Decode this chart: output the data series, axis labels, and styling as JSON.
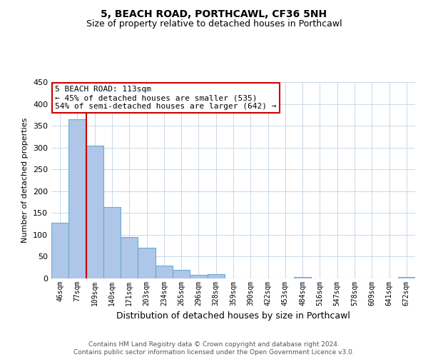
{
  "title": "5, BEACH ROAD, PORTHCAWL, CF36 5NH",
  "subtitle": "Size of property relative to detached houses in Porthcawl",
  "xlabel": "Distribution of detached houses by size in Porthcawl",
  "ylabel": "Number of detached properties",
  "bin_labels": [
    "46sqm",
    "77sqm",
    "109sqm",
    "140sqm",
    "171sqm",
    "203sqm",
    "234sqm",
    "265sqm",
    "296sqm",
    "328sqm",
    "359sqm",
    "390sqm",
    "422sqm",
    "453sqm",
    "484sqm",
    "516sqm",
    "547sqm",
    "578sqm",
    "609sqm",
    "641sqm",
    "672sqm"
  ],
  "bar_heights": [
    128,
    365,
    305,
    163,
    95,
    70,
    30,
    20,
    8,
    10,
    0,
    0,
    0,
    0,
    4,
    0,
    0,
    0,
    0,
    0,
    3
  ],
  "bar_color": "#aec6e8",
  "bar_edge_color": "#6aaad4",
  "vline_x": 2,
  "vline_color": "#cc0000",
  "ylim": [
    0,
    450
  ],
  "yticks": [
    0,
    50,
    100,
    150,
    200,
    250,
    300,
    350,
    400,
    450
  ],
  "annotation_text": "5 BEACH ROAD: 113sqm\n← 45% of detached houses are smaller (535)\n54% of semi-detached houses are larger (642) →",
  "annotation_box_color": "#ffffff",
  "annotation_box_edge_color": "#cc0000",
  "footer_line1": "Contains HM Land Registry data © Crown copyright and database right 2024.",
  "footer_line2": "Contains public sector information licensed under the Open Government Licence v3.0.",
  "background_color": "#ffffff",
  "grid_color": "#c8d8e8",
  "title_fontsize": 10,
  "subtitle_fontsize": 9
}
